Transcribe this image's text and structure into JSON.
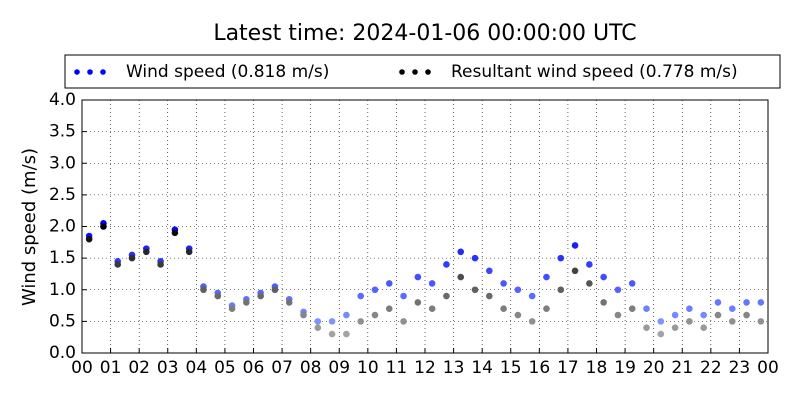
{
  "chart_data": {
    "type": "scatter",
    "title": "Latest time: 2024-01-06 00:00:00 UTC",
    "y_label": "Wind speed (m/s)",
    "x": [
      0.25,
      0.75,
      1.25,
      1.75,
      2.25,
      2.75,
      3.25,
      3.75,
      4.25,
      4.75,
      5.25,
      5.75,
      6.25,
      6.75,
      7.25,
      7.75,
      8.25,
      8.75,
      9.25,
      9.75,
      10.25,
      10.75,
      11.25,
      11.75,
      12.25,
      12.75,
      13.25,
      13.75,
      14.25,
      14.75,
      15.25,
      15.75,
      16.25,
      16.75,
      17.25,
      17.75,
      18.25,
      18.75,
      19.25,
      19.75,
      20.25,
      20.75,
      21.25,
      21.75,
      22.25,
      22.75,
      23.25,
      23.75
    ],
    "series": [
      {
        "name": "Wind speed (0.818 m/s)",
        "color": "#0000ff",
        "values": [
          1.85,
          2.05,
          1.45,
          1.55,
          1.65,
          1.45,
          1.95,
          1.65,
          1.05,
          0.95,
          0.75,
          0.85,
          0.95,
          1.05,
          0.85,
          0.65,
          0.5,
          0.5,
          0.6,
          0.9,
          1.0,
          1.1,
          0.9,
          1.2,
          1.1,
          1.4,
          1.6,
          1.5,
          1.3,
          1.1,
          1.0,
          0.9,
          1.2,
          1.5,
          1.7,
          1.4,
          1.2,
          1.0,
          1.1,
          0.7,
          0.5,
          0.6,
          0.7,
          0.6,
          0.8,
          0.7,
          0.8,
          0.8
        ]
      },
      {
        "name": "Resultant wind speed (0.778 m/s)",
        "color": "#000000",
        "values": [
          1.8,
          2.0,
          1.4,
          1.5,
          1.6,
          1.4,
          1.9,
          1.6,
          1.0,
          0.9,
          0.7,
          0.8,
          0.9,
          1.0,
          0.8,
          0.6,
          0.4,
          0.3,
          0.3,
          0.5,
          0.6,
          0.7,
          0.5,
          0.8,
          0.7,
          0.9,
          1.2,
          1.0,
          0.9,
          0.7,
          0.6,
          0.5,
          0.7,
          1.0,
          1.3,
          1.1,
          0.8,
          0.6,
          0.7,
          0.4,
          0.3,
          0.4,
          0.5,
          0.4,
          0.6,
          0.5,
          0.6,
          0.5
        ]
      }
    ],
    "xlim": [
      0,
      24
    ],
    "xticks": [
      {
        "value": 0,
        "label": "00"
      },
      {
        "value": 1,
        "label": "01"
      },
      {
        "value": 2,
        "label": "02"
      },
      {
        "value": 3,
        "label": "03"
      },
      {
        "value": 4,
        "label": "04"
      },
      {
        "value": 5,
        "label": "05"
      },
      {
        "value": 6,
        "label": "06"
      },
      {
        "value": 7,
        "label": "07"
      },
      {
        "value": 8,
        "label": "08"
      },
      {
        "value": 9,
        "label": "09"
      },
      {
        "value": 10,
        "label": "10"
      },
      {
        "value": 11,
        "label": "11"
      },
      {
        "value": 12,
        "label": "12"
      },
      {
        "value": 13,
        "label": "13"
      },
      {
        "value": 14,
        "label": "14"
      },
      {
        "value": 15,
        "label": "15"
      },
      {
        "value": 16,
        "label": "16"
      },
      {
        "value": 17,
        "label": "17"
      },
      {
        "value": 18,
        "label": "18"
      },
      {
        "value": 19,
        "label": "19"
      },
      {
        "value": 20,
        "label": "20"
      },
      {
        "value": 21,
        "label": "21"
      },
      {
        "value": 22,
        "label": "22"
      },
      {
        "value": 23,
        "label": "23"
      },
      {
        "value": 24,
        "label": "00"
      }
    ],
    "ylim": [
      0,
      4
    ],
    "yticks": [
      {
        "value": 0,
        "label": "0.0"
      },
      {
        "value": 0.5,
        "label": "0.5"
      },
      {
        "value": 1,
        "label": "1.0"
      },
      {
        "value": 1.5,
        "label": "1.5"
      },
      {
        "value": 2,
        "label": "2.0"
      },
      {
        "value": 2.5,
        "label": "2.5"
      },
      {
        "value": 3,
        "label": "3.0"
      },
      {
        "value": 3.5,
        "label": "3.5"
      },
      {
        "value": 4,
        "label": "4.0"
      }
    ],
    "grid": true
  }
}
